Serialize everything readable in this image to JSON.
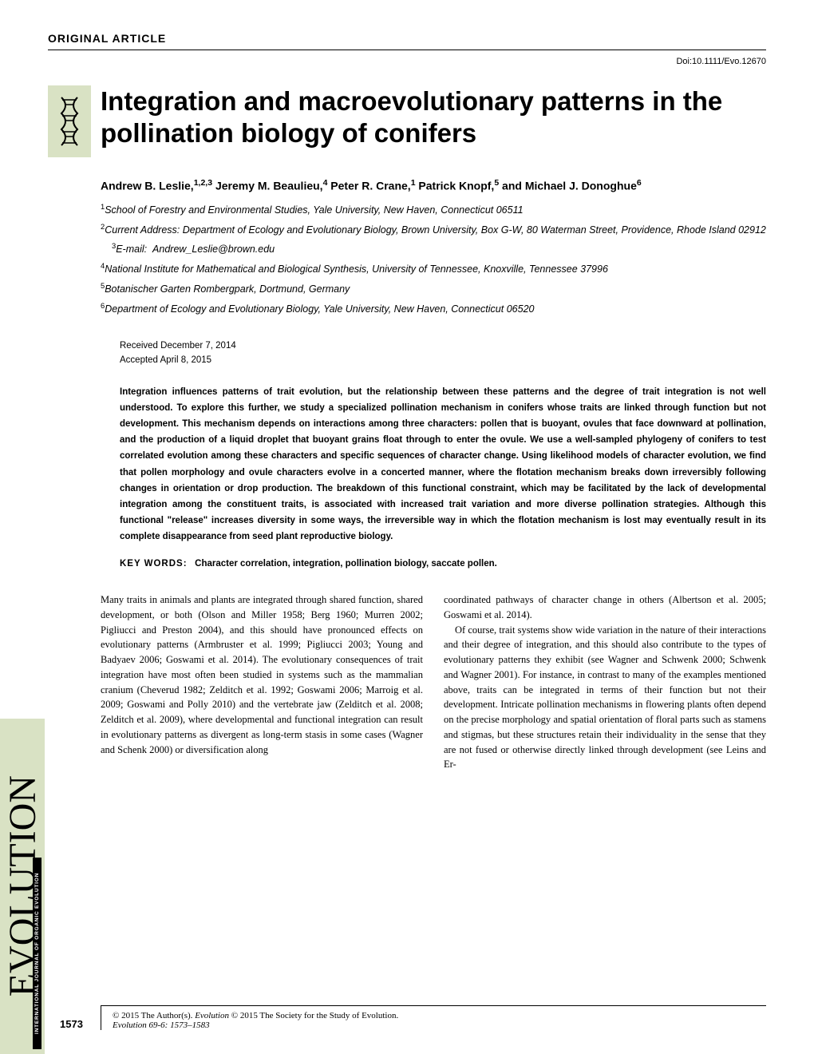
{
  "header": {
    "label": "ORIGINAL ARTICLE",
    "doi": "Doi:10.1111/Evo.12670"
  },
  "title": "Integration and macroevolutionary patterns in the pollination biology of conifers",
  "authors_html": "Andrew B. Leslie,<sup>1,2,3</sup> Jeremy M. Beaulieu,<sup>4</sup> Peter R. Crane,<sup>1</sup> Patrick Knopf,<sup>5</sup> and Michael J. Donoghue<sup>6</sup>",
  "affiliations": [
    "<sup>1</sup>School of Forestry and Environmental Studies, Yale University, New Haven, Connecticut 06511",
    "<sup>2</sup>Current Address: Department of Ecology and Evolutionary Biology, Brown University, Box G-W, 80 Waterman Street, Providence, Rhode Island 02912",
    "<sup>3</sup>E-mail:&nbsp;&nbsp;Andrew_Leslie@brown.edu",
    "<sup>4</sup>National Institute for Mathematical and Biological Synthesis, University of Tennessee, Knoxville, Tennessee 37996",
    "<sup>5</sup>Botanischer Garten Rombergpark, Dortmund, Germany",
    "<sup>6</sup>Department of Ecology and Evolutionary Biology, Yale University, New Haven, Connecticut 06520"
  ],
  "dates": {
    "received": "Received December 7, 2014",
    "accepted": "Accepted April 8, 2015"
  },
  "abstract": "Integration influences patterns of trait evolution, but the relationship between these patterns and the degree of trait integration is not well understood. To explore this further, we study a specialized pollination mechanism in conifers whose traits are linked through function but not development. This mechanism depends on interactions among three characters: pollen that is buoyant, ovules that face downward at pollination, and the production of a liquid droplet that buoyant grains float through to enter the ovule. We use a well-sampled phylogeny of conifers to test correlated evolution among these characters and specific sequences of character change. Using likelihood models of character evolution, we find that pollen morphology and ovule characters evolve in a concerted manner, where the flotation mechanism breaks down irreversibly following changes in orientation or drop production. The breakdown of this functional constraint, which may be facilitated by the lack of developmental integration among the constituent traits, is associated with increased trait variation and more diverse pollination strategies. Although this functional \"release\" increases diversity in some ways, the irreversible way in which the flotation mechanism is lost may eventually result in its complete disappearance from seed plant reproductive biology.",
  "keywords": {
    "label": "KEY WORDS:",
    "text": "Character correlation, integration, pollination biology, saccate pollen."
  },
  "body": {
    "col1": "Many traits in animals and plants are integrated through shared function, shared development, or both (Olson and Miller 1958; Berg 1960; Murren 2002; Pigliucci and Preston 2004), and this should have pronounced effects on evolutionary patterns (Armbruster et al. 1999; Pigliucci 2003; Young and Badyaev 2006; Goswami et al. 2014). The evolutionary consequences of trait integration have most often been studied in systems such as the mammalian cranium (Cheverud 1982; Zelditch et al. 1992; Goswami 2006; Marroig et al. 2009; Goswami and Polly 2010) and the vertebrate jaw (Zelditch et al. 2008; Zelditch et al. 2009), where developmental and functional integration can result in evolutionary patterns as divergent as long-term stasis in some cases (Wagner and Schenk 2000) or diversification along",
    "col2a": "coordinated pathways of character change in others (Albertson et al. 2005; Goswami et al. 2014).",
    "col2b": "Of course, trait systems show wide variation in the nature of their interactions and their degree of integration, and this should also contribute to the types of evolutionary patterns they exhibit (see Wagner and Schwenk 2000; Schwenk and Wagner 2001). For instance, in contrast to many of the examples mentioned above, traits can be integrated in terms of their function but not their development. Intricate pollination mechanisms in flowering plants often depend on the precise morphology and spatial orientation of floral parts such as stamens and stigmas, but these structures retain their individuality in the sense that they are not fused or otherwise directly linked through development (see Leins and Er-"
  },
  "sidebar": {
    "main": "EVOLUTION",
    "sub": "INTERNATIONAL JOURNAL OF ORGANIC EVOLUTION"
  },
  "footer": {
    "copyright": "© 2015 The Author(s). Evolution © 2015 The Society for the Study of Evolution.",
    "journal": "Evolution 69-6: 1573–1583",
    "page": "1573"
  },
  "colors": {
    "sidebar_bg": "#d9e2c4",
    "text": "#000000",
    "background": "#ffffff"
  }
}
